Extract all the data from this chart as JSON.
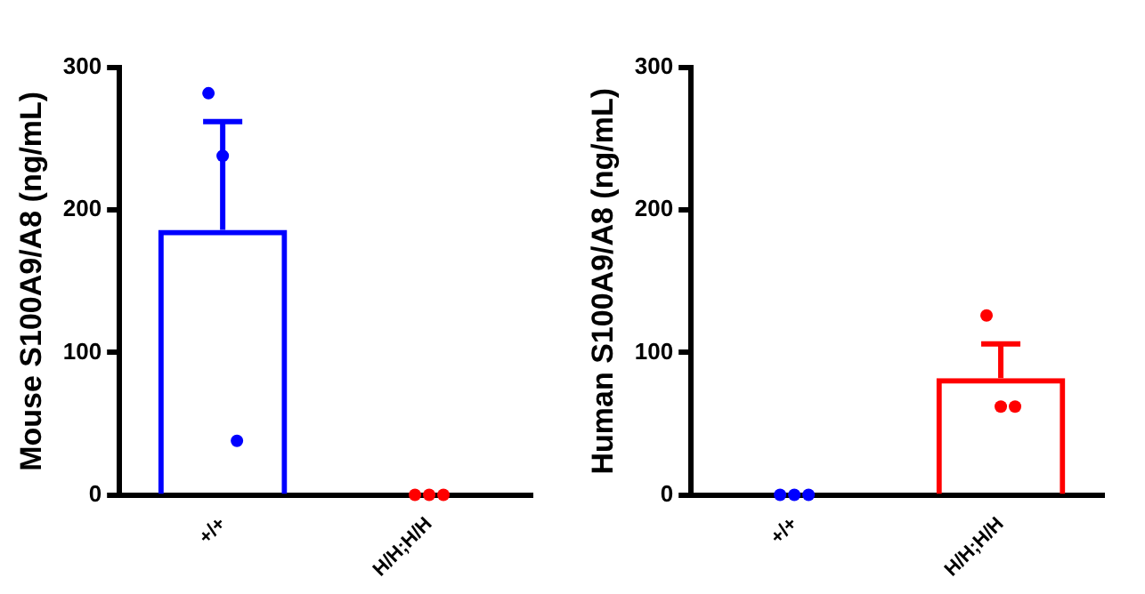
{
  "chart_data": [
    {
      "type": "bar",
      "ylabel": "Mouse S100A9/A8 (ng/mL)",
      "categories": [
        "+/+",
        "H/H;H/H"
      ],
      "ylim": [
        0,
        300
      ],
      "yticks": [
        0,
        100,
        200,
        300
      ],
      "grid": false,
      "legend": false,
      "series": [
        {
          "type": "bar",
          "values": [
            186,
            0
          ],
          "colors": [
            "#0000ff",
            "#ff0000"
          ],
          "errors": [
            76,
            null
          ]
        },
        {
          "type": "scatter",
          "marker": "circle",
          "x": [
            "+/+",
            "+/+",
            "+/+",
            "H/H;H/H",
            "H/H;H/H",
            "H/H;H/H"
          ],
          "values": [
            282,
            238,
            38,
            0,
            0,
            0
          ],
          "colors": [
            "#0000ff",
            "#0000ff",
            "#0000ff",
            "#ff0000",
            "#ff0000",
            "#ff0000"
          ]
        }
      ]
    },
    {
      "type": "bar",
      "ylabel": "Human S100A9/A8 (ng/mL)",
      "categories": [
        "+/+",
        "H/H;H/H"
      ],
      "ylim": [
        0,
        300
      ],
      "yticks": [
        0,
        100,
        200,
        300
      ],
      "grid": false,
      "legend": false,
      "series": [
        {
          "type": "bar",
          "values": [
            0,
            82
          ],
          "colors": [
            "#0000ff",
            "#ff0000"
          ],
          "errors": [
            null,
            24
          ]
        },
        {
          "type": "scatter",
          "marker": "circle",
          "x": [
            "+/+",
            "+/+",
            "+/+",
            "H/H;H/H",
            "H/H;H/H",
            "H/H;H/H"
          ],
          "values": [
            0,
            0,
            0,
            126,
            62,
            62
          ],
          "colors": [
            "#0000ff",
            "#0000ff",
            "#0000ff",
            "#ff0000",
            "#ff0000",
            "#ff0000"
          ]
        }
      ]
    }
  ]
}
